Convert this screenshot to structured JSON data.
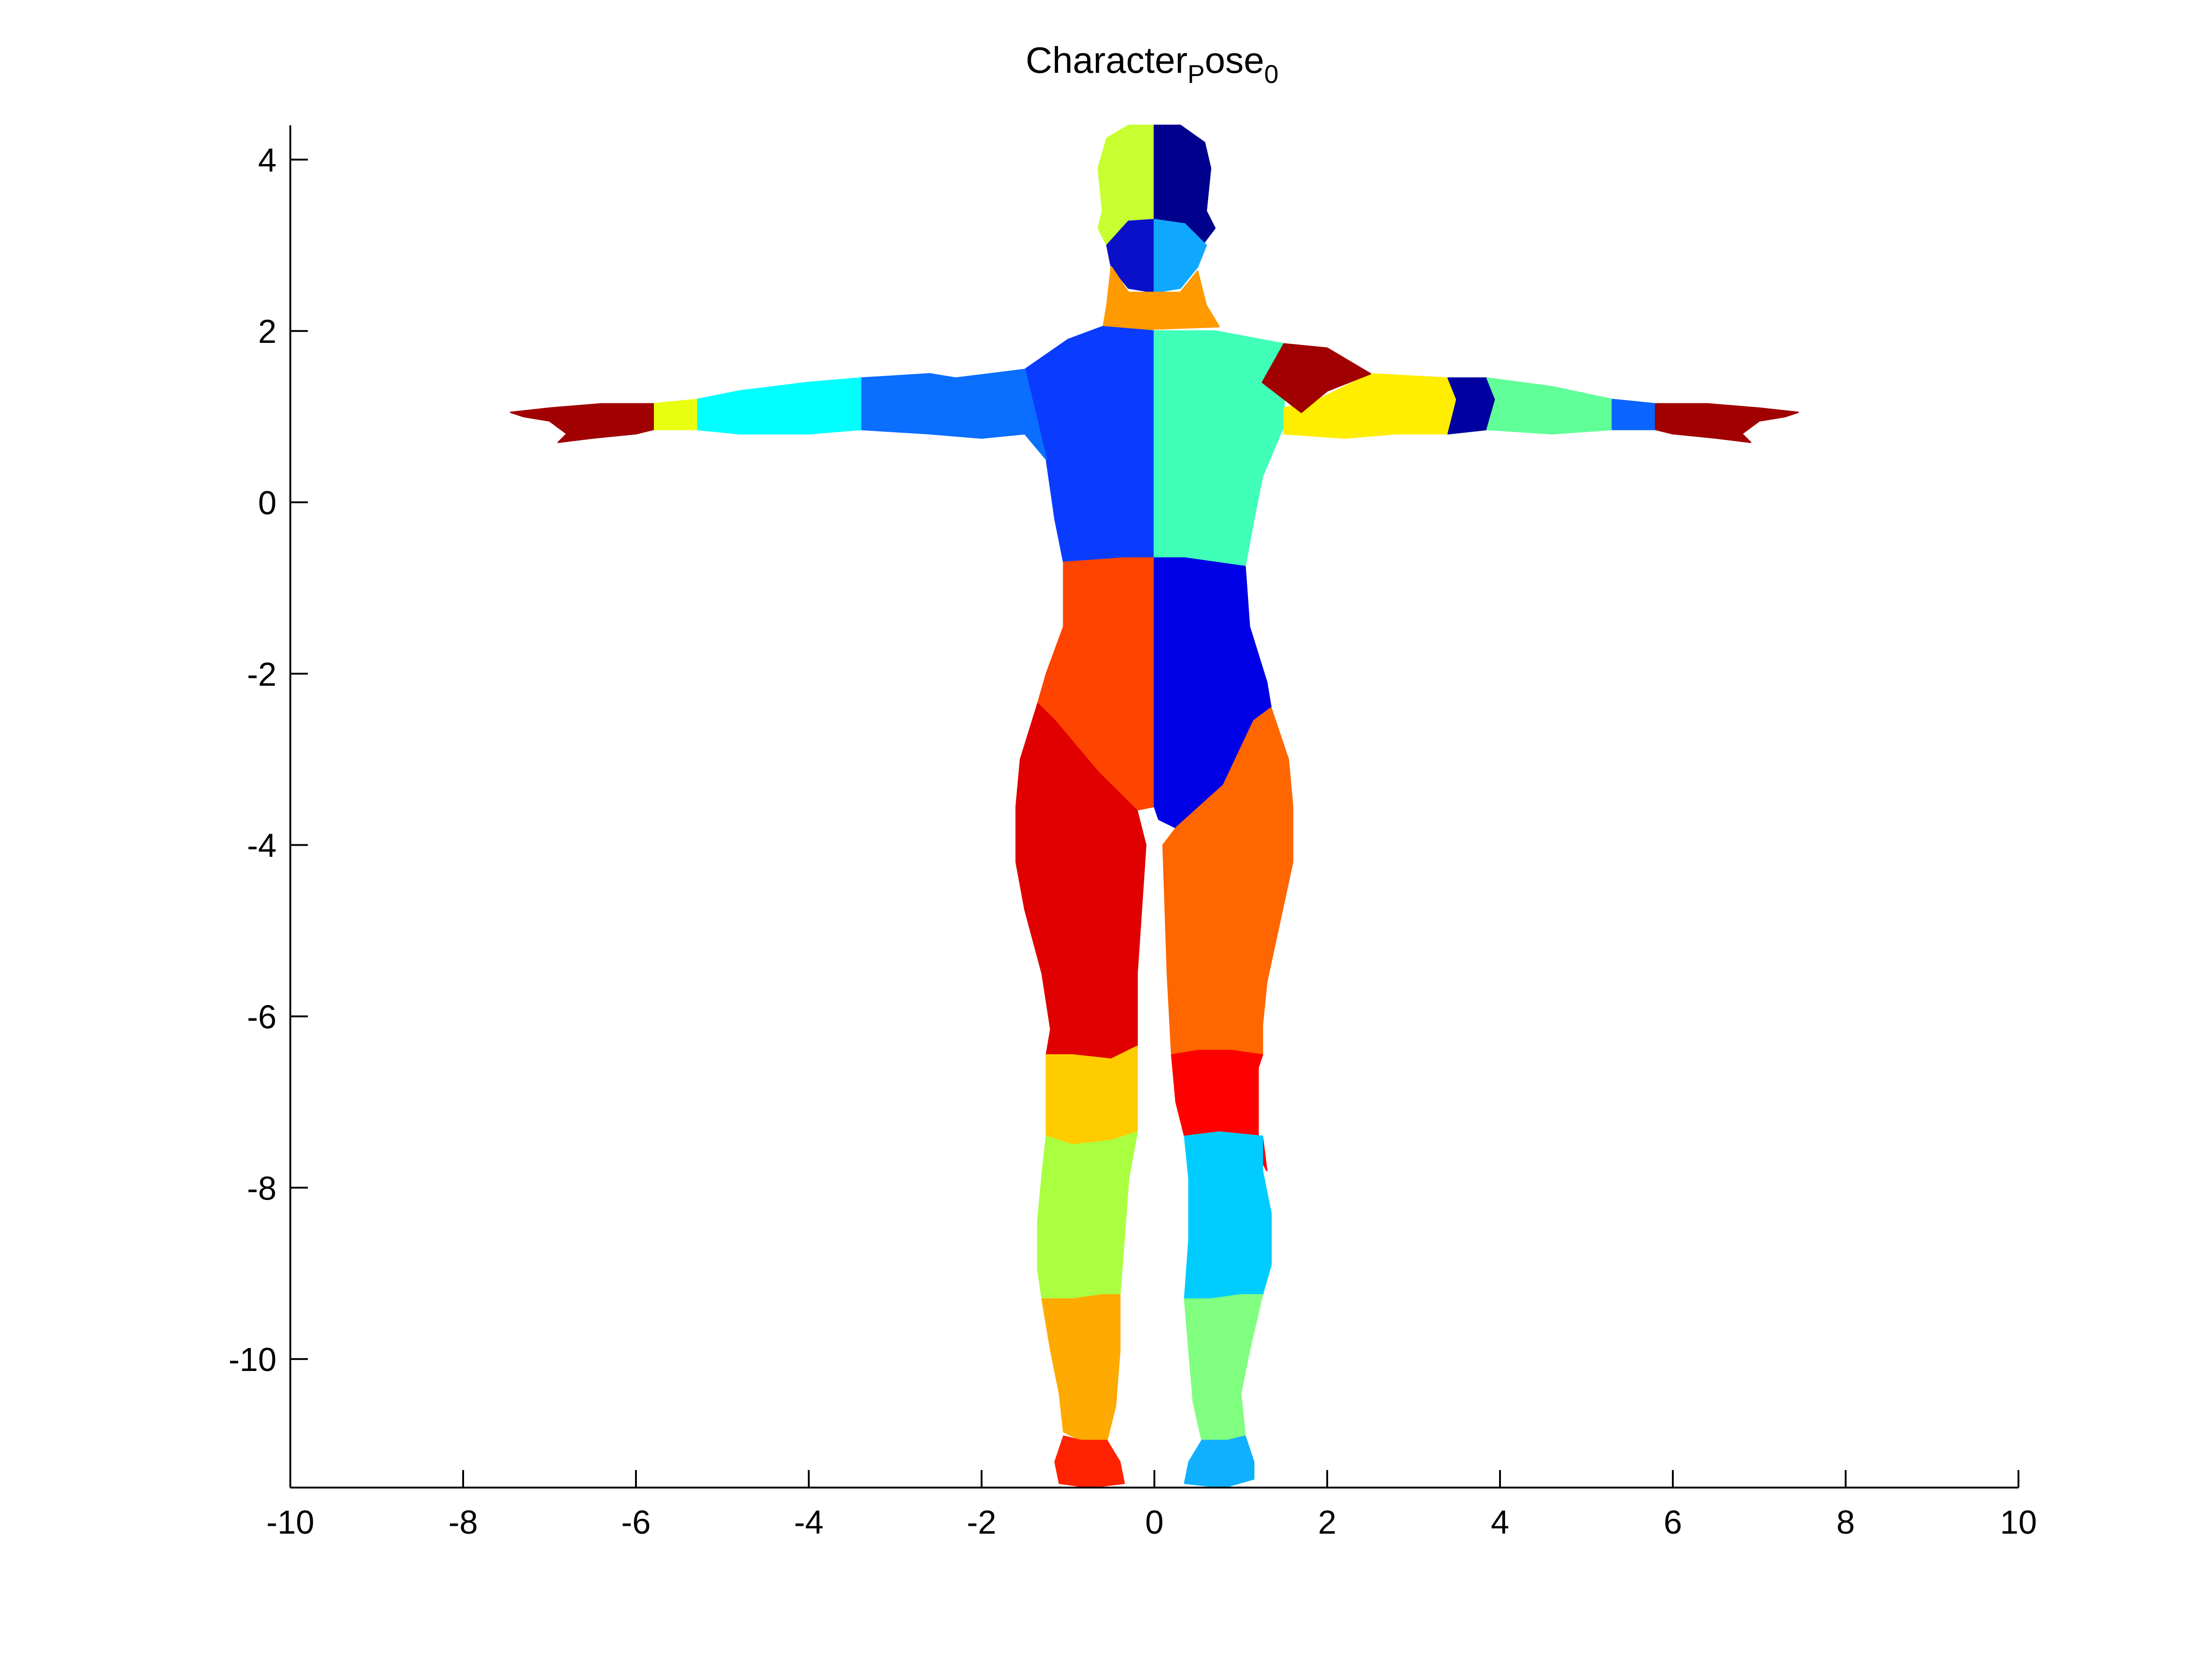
{
  "chart_data": {
    "type": "patch",
    "title": "Character",
    "title_sub": "P",
    "title_rest": "ose",
    "title_sub2": "0",
    "xlabel": "",
    "ylabel": "",
    "xlim": [
      -10,
      10
    ],
    "ylim": [
      -11.5,
      4.4
    ],
    "xticks": [
      -10,
      -8,
      -6,
      -4,
      -2,
      0,
      2,
      4,
      6,
      8,
      10
    ],
    "yticks": [
      4,
      2,
      0,
      -2,
      -4,
      -6,
      -8,
      -10
    ],
    "xtick_labels": [
      "-10",
      "-8",
      "-6",
      "-4",
      "-2",
      "0",
      "2",
      "4",
      "6",
      "8",
      "10"
    ],
    "ytick_labels": [
      "4",
      "2",
      "0",
      "-2",
      "-4",
      "-6",
      "-8",
      "-10"
    ],
    "grid": false,
    "colormap": "jet",
    "segments": [
      {
        "name": "head-left",
        "color": "#c8ff30",
        "points": [
          [
            -0.6,
            3.4
          ],
          [
            -0.65,
            3.9
          ],
          [
            -0.55,
            4.25
          ],
          [
            -0.3,
            4.4
          ],
          [
            0,
            4.4
          ],
          [
            0,
            3.0
          ],
          [
            -0.55,
            3.0
          ],
          [
            -0.65,
            3.2
          ]
        ]
      },
      {
        "name": "head-right",
        "color": "#00008f",
        "points": [
          [
            0,
            4.4
          ],
          [
            0.3,
            4.4
          ],
          [
            0.58,
            4.2
          ],
          [
            0.65,
            3.9
          ],
          [
            0.6,
            3.4
          ],
          [
            0.7,
            3.2
          ],
          [
            0.55,
            3.0
          ],
          [
            0,
            3.0
          ]
        ]
      },
      {
        "name": "face-left",
        "color": "#0a10c8",
        "points": [
          [
            -0.55,
            3.0
          ],
          [
            -0.3,
            3.28
          ],
          [
            0,
            3.3
          ],
          [
            0,
            2.45
          ],
          [
            -0.3,
            2.5
          ],
          [
            -0.5,
            2.75
          ]
        ]
      },
      {
        "name": "face-right",
        "color": "#10a8ff",
        "points": [
          [
            0,
            3.3
          ],
          [
            0.35,
            3.25
          ],
          [
            0.6,
            3.0
          ],
          [
            0.5,
            2.75
          ],
          [
            0.3,
            2.5
          ],
          [
            0,
            2.45
          ]
        ]
      },
      {
        "name": "neck",
        "color": "#ff9a00",
        "points": [
          [
            -0.5,
            2.75
          ],
          [
            -0.3,
            2.45
          ],
          [
            0.3,
            2.45
          ],
          [
            0.5,
            2.7
          ],
          [
            0.6,
            2.3
          ],
          [
            0.75,
            2.05
          ],
          [
            -0.6,
            2.0
          ],
          [
            -0.55,
            2.3
          ]
        ]
      },
      {
        "name": "torso-upper-left",
        "color": "#0a3cff",
        "points": [
          [
            -0.6,
            2.05
          ],
          [
            -1.0,
            1.9
          ],
          [
            -1.5,
            1.55
          ],
          [
            -1.25,
            0.5
          ],
          [
            -1.15,
            -0.2
          ],
          [
            -1.05,
            -0.7
          ],
          [
            -0.7,
            -0.75
          ],
          [
            -0.3,
            -0.65
          ],
          [
            0,
            -0.65
          ],
          [
            0,
            2.0
          ]
        ]
      },
      {
        "name": "torso-upper-right",
        "color": "#40ffb8",
        "points": [
          [
            0,
            2.0
          ],
          [
            0.7,
            2.0
          ],
          [
            1.5,
            1.85
          ],
          [
            1.5,
            0.9
          ],
          [
            1.25,
            0.3
          ],
          [
            1.15,
            -0.2
          ],
          [
            1.05,
            -0.75
          ],
          [
            0.7,
            -0.75
          ],
          [
            0.3,
            -0.65
          ],
          [
            0,
            -0.65
          ]
        ]
      },
      {
        "name": "abdomen-left",
        "color": "#ff4400",
        "points": [
          [
            -1.05,
            -0.7
          ],
          [
            -1.05,
            -1.45
          ],
          [
            -1.25,
            -2.0
          ],
          [
            -1.35,
            -2.35
          ],
          [
            -1.15,
            -2.55
          ],
          [
            -0.65,
            -3.15
          ],
          [
            -0.25,
            -3.6
          ],
          [
            0,
            -3.55
          ],
          [
            0,
            -0.65
          ],
          [
            -0.35,
            -0.65
          ]
        ]
      },
      {
        "name": "abdomen-right",
        "color": "#0000e6",
        "points": [
          [
            0,
            -0.65
          ],
          [
            0.35,
            -0.65
          ],
          [
            1.05,
            -0.75
          ],
          [
            1.1,
            -1.45
          ],
          [
            1.3,
            -2.1
          ],
          [
            1.35,
            -2.4
          ],
          [
            1.15,
            -2.55
          ],
          [
            0.8,
            -3.3
          ],
          [
            0.25,
            -3.8
          ],
          [
            0.05,
            -3.7
          ],
          [
            0,
            -3.55
          ]
        ]
      },
      {
        "name": "thigh-left",
        "color": "#e00000",
        "points": [
          [
            -1.35,
            -2.35
          ],
          [
            -1.55,
            -3.0
          ],
          [
            -1.6,
            -3.55
          ],
          [
            -1.6,
            -4.2
          ],
          [
            -1.5,
            -4.75
          ],
          [
            -1.3,
            -5.5
          ],
          [
            -1.2,
            -6.15
          ],
          [
            -1.25,
            -6.45
          ],
          [
            -0.95,
            -6.45
          ],
          [
            -0.5,
            -6.5
          ],
          [
            -0.2,
            -6.35
          ],
          [
            -0.2,
            -5.5
          ],
          [
            -0.1,
            -4.0
          ],
          [
            -0.2,
            -3.6
          ],
          [
            -0.65,
            -3.15
          ],
          [
            -1.15,
            -2.55
          ]
        ]
      },
      {
        "name": "thigh-right",
        "color": "#ff6600",
        "points": [
          [
            1.35,
            -2.4
          ],
          [
            1.55,
            -3.0
          ],
          [
            1.6,
            -3.55
          ],
          [
            1.6,
            -4.2
          ],
          [
            1.45,
            -4.9
          ],
          [
            1.3,
            -5.6
          ],
          [
            1.25,
            -6.1
          ],
          [
            1.25,
            -6.45
          ],
          [
            0.9,
            -6.4
          ],
          [
            0.5,
            -6.4
          ],
          [
            0.2,
            -6.45
          ],
          [
            0.15,
            -5.5
          ],
          [
            0.1,
            -4.0
          ],
          [
            0.25,
            -3.8
          ],
          [
            0.8,
            -3.3
          ],
          [
            1.15,
            -2.55
          ]
        ]
      },
      {
        "name": "knee-left",
        "color": "#ffcc00",
        "points": [
          [
            -1.25,
            -6.45
          ],
          [
            -1.25,
            -7.0
          ],
          [
            -1.25,
            -7.4
          ],
          [
            -0.95,
            -7.5
          ],
          [
            -0.5,
            -7.45
          ],
          [
            -0.2,
            -7.35
          ],
          [
            -0.2,
            -6.9
          ],
          [
            -0.2,
            -6.35
          ],
          [
            -0.5,
            -6.5
          ],
          [
            -0.95,
            -6.45
          ]
        ]
      },
      {
        "name": "knee-right",
        "color": "#ff0000",
        "points": [
          [
            0.2,
            -6.45
          ],
          [
            0.25,
            -7.0
          ],
          [
            0.35,
            -7.4
          ],
          [
            0.75,
            -7.35
          ],
          [
            1.25,
            -7.4
          ],
          [
            1.3,
            -7.8
          ],
          [
            1.2,
            -7.6
          ],
          [
            1.2,
            -6.6
          ],
          [
            1.25,
            -6.45
          ],
          [
            0.9,
            -6.4
          ],
          [
            0.5,
            -6.4
          ]
        ]
      },
      {
        "name": "shin-left",
        "color": "#aaff40",
        "points": [
          [
            -1.25,
            -7.4
          ],
          [
            -1.3,
            -7.85
          ],
          [
            -1.35,
            -8.4
          ],
          [
            -1.35,
            -8.95
          ],
          [
            -1.3,
            -9.3
          ],
          [
            -0.95,
            -9.3
          ],
          [
            -0.6,
            -9.25
          ],
          [
            -0.4,
            -9.25
          ],
          [
            -0.35,
            -8.6
          ],
          [
            -0.3,
            -7.9
          ],
          [
            -0.2,
            -7.35
          ],
          [
            -0.5,
            -7.45
          ],
          [
            -0.95,
            -7.5
          ]
        ]
      },
      {
        "name": "shin-right",
        "color": "#00ccff",
        "points": [
          [
            0.35,
            -7.4
          ],
          [
            0.4,
            -7.9
          ],
          [
            0.4,
            -8.6
          ],
          [
            0.35,
            -9.3
          ],
          [
            0.65,
            -9.3
          ],
          [
            1.0,
            -9.25
          ],
          [
            1.25,
            -9.25
          ],
          [
            1.35,
            -8.9
          ],
          [
            1.35,
            -8.3
          ],
          [
            1.25,
            -7.8
          ],
          [
            1.25,
            -7.4
          ],
          [
            0.75,
            -7.35
          ]
        ]
      },
      {
        "name": "ankle-left",
        "color": "#ffaa00",
        "points": [
          [
            -1.3,
            -9.3
          ],
          [
            -1.2,
            -9.9
          ],
          [
            -1.1,
            -10.4
          ],
          [
            -1.05,
            -10.85
          ],
          [
            -0.85,
            -10.95
          ],
          [
            -0.55,
            -10.95
          ],
          [
            -0.45,
            -10.55
          ],
          [
            -0.4,
            -9.9
          ],
          [
            -0.4,
            -9.25
          ],
          [
            -0.6,
            -9.25
          ],
          [
            -0.95,
            -9.3
          ]
        ]
      },
      {
        "name": "ankle-right",
        "color": "#80ff80",
        "points": [
          [
            0.35,
            -9.3
          ],
          [
            0.4,
            -9.9
          ],
          [
            0.45,
            -10.5
          ],
          [
            0.55,
            -10.95
          ],
          [
            0.85,
            -10.95
          ],
          [
            1.05,
            -10.9
          ],
          [
            1.0,
            -10.4
          ],
          [
            1.1,
            -9.9
          ],
          [
            1.25,
            -9.25
          ],
          [
            1.0,
            -9.25
          ],
          [
            0.65,
            -9.3
          ]
        ]
      },
      {
        "name": "foot-left",
        "color": "#ff2200",
        "points": [
          [
            -1.05,
            -10.9
          ],
          [
            -1.15,
            -11.2
          ],
          [
            -1.1,
            -11.45
          ],
          [
            -0.75,
            -11.5
          ],
          [
            -0.35,
            -11.45
          ],
          [
            -0.4,
            -11.2
          ],
          [
            -0.55,
            -10.95
          ],
          [
            -0.85,
            -10.95
          ]
        ]
      },
      {
        "name": "foot-right",
        "color": "#10b0ff",
        "points": [
          [
            0.55,
            -10.95
          ],
          [
            0.4,
            -11.2
          ],
          [
            0.35,
            -11.45
          ],
          [
            0.8,
            -11.5
          ],
          [
            1.15,
            -11.4
          ],
          [
            1.15,
            -11.2
          ],
          [
            1.05,
            -10.9
          ],
          [
            0.85,
            -10.95
          ]
        ]
      },
      {
        "name": "upper-arm-left",
        "color": "#0a6eff",
        "points": [
          [
            -1.5,
            1.55
          ],
          [
            -2.3,
            1.45
          ],
          [
            -2.6,
            1.5
          ],
          [
            -3.4,
            1.45
          ],
          [
            -3.5,
            1.2
          ],
          [
            -3.4,
            0.85
          ],
          [
            -2.6,
            0.8
          ],
          [
            -2.0,
            0.75
          ],
          [
            -1.5,
            0.8
          ],
          [
            -1.25,
            0.5
          ]
        ]
      },
      {
        "name": "forearm-left",
        "color": "#00ffff",
        "points": [
          [
            -3.4,
            1.45
          ],
          [
            -4.0,
            1.4
          ],
          [
            -4.8,
            1.3
          ],
          [
            -5.3,
            1.2
          ],
          [
            -5.3,
            0.85
          ],
          [
            -4.8,
            0.8
          ],
          [
            -4.0,
            0.8
          ],
          [
            -3.4,
            0.85
          ]
        ]
      },
      {
        "name": "wrist-left",
        "color": "#e8ff10",
        "points": [
          [
            -5.3,
            1.2
          ],
          [
            -5.8,
            1.15
          ],
          [
            -5.8,
            0.85
          ],
          [
            -5.3,
            0.85
          ]
        ]
      },
      {
        "name": "hand-left",
        "color": "#a00000",
        "points": [
          [
            -5.8,
            1.15
          ],
          [
            -6.4,
            1.15
          ],
          [
            -7.0,
            1.1
          ],
          [
            -7.45,
            1.05
          ],
          [
            -7.3,
            1.0
          ],
          [
            -7.0,
            0.95
          ],
          [
            -6.8,
            0.8
          ],
          [
            -6.9,
            0.7
          ],
          [
            -6.5,
            0.75
          ],
          [
            -6.0,
            0.8
          ],
          [
            -5.8,
            0.85
          ]
        ]
      },
      {
        "name": "upper-arm-right",
        "color": "#ffee00",
        "points": [
          [
            1.5,
            1.1
          ],
          [
            1.9,
            1.2
          ],
          [
            2.5,
            1.5
          ],
          [
            3.4,
            1.45
          ],
          [
            3.5,
            1.2
          ],
          [
            3.4,
            0.8
          ],
          [
            2.8,
            0.8
          ],
          [
            2.2,
            0.75
          ],
          [
            1.5,
            0.8
          ]
        ]
      },
      {
        "name": "shoulder-right",
        "color": "#a00000",
        "points": [
          [
            1.5,
            1.85
          ],
          [
            2.0,
            1.8
          ],
          [
            2.5,
            1.5
          ],
          [
            2.0,
            1.3
          ],
          [
            1.7,
            1.05
          ],
          [
            1.25,
            1.4
          ]
        ]
      },
      {
        "name": "elbow-right",
        "color": "#0000a0",
        "points": [
          [
            3.4,
            1.45
          ],
          [
            3.85,
            1.45
          ],
          [
            3.95,
            1.2
          ],
          [
            3.85,
            0.85
          ],
          [
            3.4,
            0.8
          ],
          [
            3.5,
            1.2
          ]
        ]
      },
      {
        "name": "forearm-right",
        "color": "#60ff98",
        "points": [
          [
            3.85,
            1.45
          ],
          [
            4.6,
            1.35
          ],
          [
            5.3,
            1.2
          ],
          [
            5.3,
            0.85
          ],
          [
            4.6,
            0.8
          ],
          [
            3.85,
            0.85
          ],
          [
            3.95,
            1.2
          ]
        ]
      },
      {
        "name": "wrist-right",
        "color": "#0a64ff",
        "points": [
          [
            5.3,
            1.2
          ],
          [
            5.8,
            1.15
          ],
          [
            5.8,
            0.85
          ],
          [
            5.3,
            0.85
          ]
        ]
      },
      {
        "name": "hand-right",
        "color": "#a00000",
        "points": [
          [
            5.8,
            1.15
          ],
          [
            6.4,
            1.15
          ],
          [
            7.0,
            1.1
          ],
          [
            7.45,
            1.05
          ],
          [
            7.3,
            1.0
          ],
          [
            7.0,
            0.95
          ],
          [
            6.8,
            0.8
          ],
          [
            6.9,
            0.7
          ],
          [
            6.5,
            0.75
          ],
          [
            6.0,
            0.8
          ],
          [
            5.8,
            0.85
          ]
        ]
      }
    ]
  }
}
